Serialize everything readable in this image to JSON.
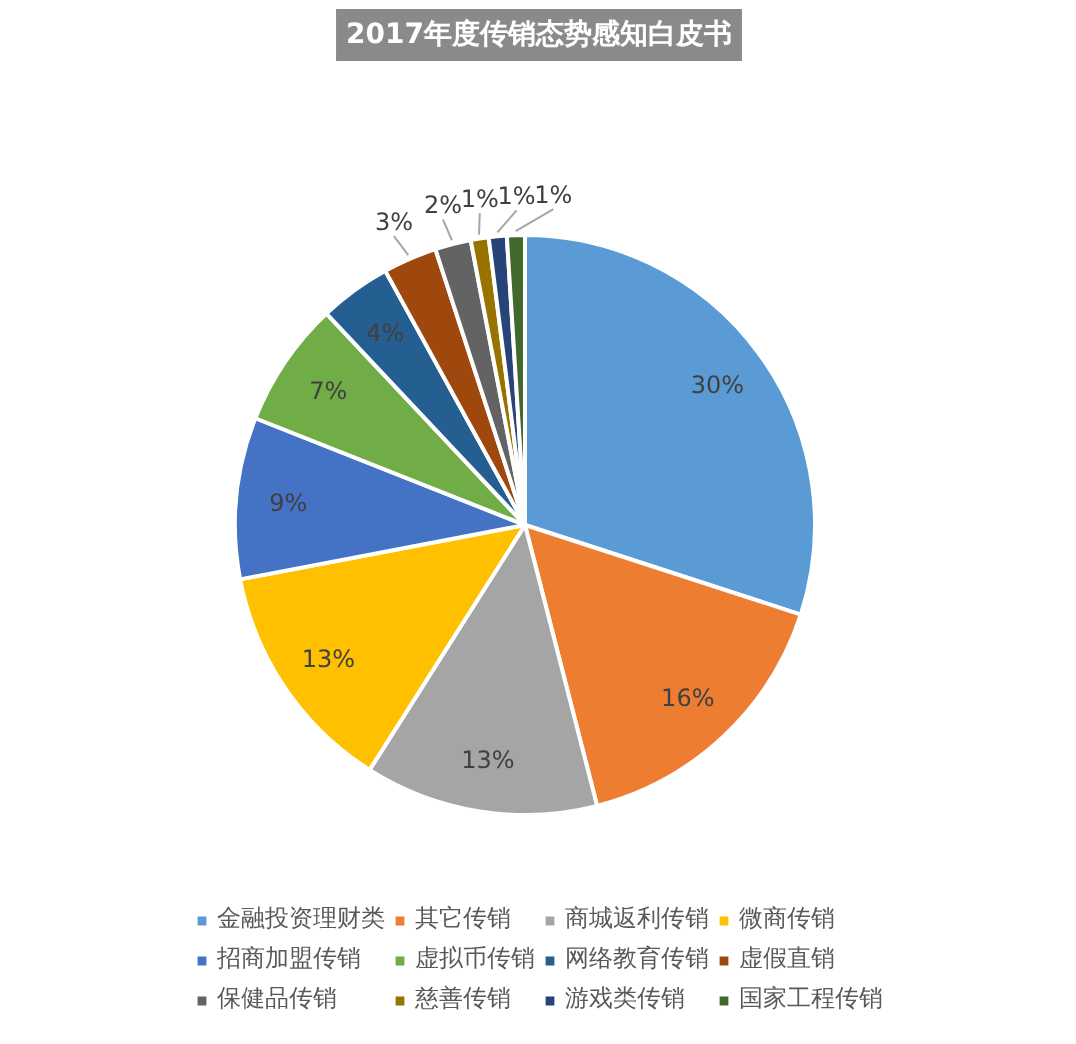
{
  "chart_data": {
    "type": "pie",
    "title": "2017年度传销态势感知白皮书",
    "categories": [
      "金融投资理财类",
      "其它传销",
      "商城返利传销",
      "微商传销",
      "招商加盟传销",
      "虚拟币传销",
      "网络教育传销",
      "虚假直销",
      "保健品传销",
      "慈善传销",
      "游戏类传销",
      "国家工程传销"
    ],
    "values": [
      30,
      16,
      13,
      13,
      9,
      7,
      4,
      3,
      2,
      1,
      1,
      1
    ],
    "value_labels": [
      "30%",
      "16%",
      "13%",
      "13%",
      "9%",
      "7%",
      "4%",
      "3%",
      "2%",
      "1%",
      "1%",
      "1%"
    ],
    "colors": [
      "#5b9bd5",
      "#ed7d31",
      "#a5a5a5",
      "#ffc000",
      "#4472c4",
      "#70ad47",
      "#255e91",
      "#9e480e",
      "#636363",
      "#997300",
      "#264478",
      "#43682b"
    ],
    "legend": "bottom"
  }
}
